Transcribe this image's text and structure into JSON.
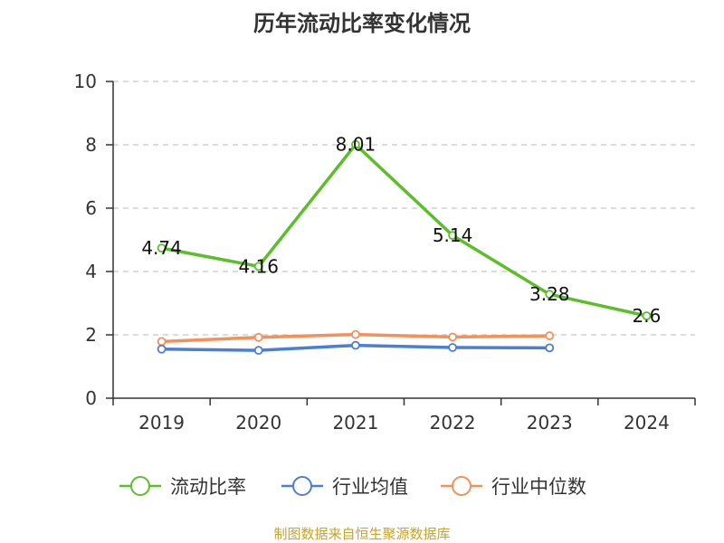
{
  "chart_data": {
    "type": "line",
    "title": "历年流动比率变化情况",
    "categories": [
      "2019",
      "2020",
      "2021",
      "2022",
      "2023",
      "2024"
    ],
    "ylim": [
      0,
      10
    ],
    "yticks": [
      0,
      2,
      4,
      6,
      8,
      10
    ],
    "grid": true,
    "legend_position": "bottom",
    "series": [
      {
        "name": "流动比率",
        "color": "#5cbf2a",
        "values": [
          4.74,
          4.16,
          8.01,
          5.14,
          3.28,
          2.6
        ],
        "labels": [
          "4.74",
          "4.16",
          "8.01",
          "5.14",
          "3.28",
          "2.6"
        ]
      },
      {
        "name": "行业均值",
        "color": "#4a7fd6",
        "values": [
          1.55,
          1.51,
          1.67,
          1.6,
          1.59,
          null
        ]
      },
      {
        "name": "行业中位数",
        "color": "#f5905a",
        "values": [
          1.79,
          1.92,
          2.01,
          1.93,
          1.97,
          null
        ]
      }
    ],
    "source": "制图数据来自恒生聚源数据库"
  }
}
